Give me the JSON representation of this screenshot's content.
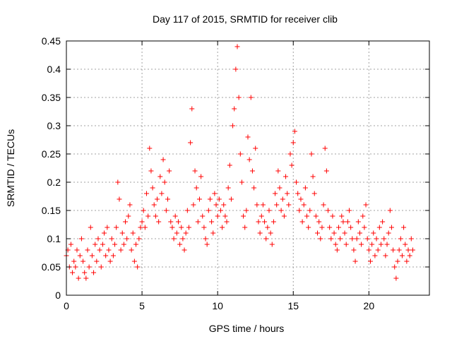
{
  "chart_data": {
    "type": "scatter",
    "title": "Day 117 of 2015, SRMTID for receiver clib",
    "xlabel": "GPS time / hours",
    "ylabel": "SRMTID / TECUs",
    "xlim": [
      0,
      24
    ],
    "ylim": [
      0,
      0.45
    ],
    "xticks": [
      0,
      5,
      10,
      15,
      20
    ],
    "xtick_labels": [
      "0",
      "5",
      "10",
      "15",
      "20"
    ],
    "yticks": [
      0,
      0.05,
      0.1,
      0.15,
      0.2,
      0.25,
      0.3,
      0.35,
      0.4,
      0.45
    ],
    "ytick_labels": [
      "0",
      "0.05",
      "0.1",
      "0.15",
      "0.2",
      "0.25",
      "0.3",
      "0.35",
      "0.4",
      "0.45"
    ],
    "grid": true,
    "marker": "+",
    "marker_color": "#ff0000",
    "series": [
      {
        "points": [
          [
            0.0,
            0.07
          ],
          [
            0.1,
            0.08
          ],
          [
            0.2,
            0.05
          ],
          [
            0.3,
            0.09
          ],
          [
            0.4,
            0.04
          ],
          [
            0.5,
            0.06
          ],
          [
            0.6,
            0.05
          ],
          [
            0.7,
            0.08
          ],
          [
            0.8,
            0.03
          ],
          [
            0.9,
            0.07
          ],
          [
            1.0,
            0.1
          ],
          [
            1.1,
            0.06
          ],
          [
            1.2,
            0.04
          ],
          [
            1.3,
            0.03
          ],
          [
            1.4,
            0.08
          ],
          [
            1.5,
            0.05
          ],
          [
            1.6,
            0.12
          ],
          [
            1.7,
            0.07
          ],
          [
            1.8,
            0.04
          ],
          [
            1.9,
            0.09
          ],
          [
            2.0,
            0.06
          ],
          [
            2.1,
            0.1
          ],
          [
            2.2,
            0.08
          ],
          [
            2.3,
            0.05
          ],
          [
            2.4,
            0.09
          ],
          [
            2.5,
            0.11
          ],
          [
            2.6,
            0.07
          ],
          [
            2.7,
            0.12
          ],
          [
            2.8,
            0.08
          ],
          [
            2.9,
            0.06
          ],
          [
            3.0,
            0.1
          ],
          [
            3.1,
            0.07
          ],
          [
            3.2,
            0.09
          ],
          [
            3.3,
            0.12
          ],
          [
            3.4,
            0.2
          ],
          [
            3.5,
            0.17
          ],
          [
            3.6,
            0.08
          ],
          [
            3.7,
            0.11
          ],
          [
            3.8,
            0.09
          ],
          [
            3.9,
            0.13
          ],
          [
            4.0,
            0.1
          ],
          [
            4.1,
            0.14
          ],
          [
            4.2,
            0.16
          ],
          [
            4.3,
            0.08
          ],
          [
            4.4,
            0.11
          ],
          [
            4.5,
            0.06
          ],
          [
            4.6,
            0.09
          ],
          [
            4.7,
            0.05
          ],
          [
            4.8,
            0.1
          ],
          [
            4.9,
            0.12
          ],
          [
            5.0,
            0.13
          ],
          [
            5.1,
            0.15
          ],
          [
            5.2,
            0.12
          ],
          [
            5.3,
            0.18
          ],
          [
            5.4,
            0.14
          ],
          [
            5.5,
            0.26
          ],
          [
            5.6,
            0.22
          ],
          [
            5.7,
            0.19
          ],
          [
            5.8,
            0.16
          ],
          [
            5.9,
            0.14
          ],
          [
            6.0,
            0.17
          ],
          [
            6.1,
            0.13
          ],
          [
            6.2,
            0.21
          ],
          [
            6.3,
            0.18
          ],
          [
            6.4,
            0.24
          ],
          [
            6.5,
            0.2
          ],
          [
            6.6,
            0.15
          ],
          [
            6.7,
            0.17
          ],
          [
            6.8,
            0.22
          ],
          [
            6.9,
            0.13
          ],
          [
            7.0,
            0.12
          ],
          [
            7.1,
            0.1
          ],
          [
            7.2,
            0.14
          ],
          [
            7.3,
            0.11
          ],
          [
            7.4,
            0.13
          ],
          [
            7.5,
            0.09
          ],
          [
            7.6,
            0.12
          ],
          [
            7.7,
            0.1
          ],
          [
            7.8,
            0.08
          ],
          [
            7.9,
            0.11
          ],
          [
            8.0,
            0.15
          ],
          [
            8.1,
            0.12
          ],
          [
            8.2,
            0.27
          ],
          [
            8.3,
            0.33
          ],
          [
            8.4,
            0.16
          ],
          [
            8.5,
            0.22
          ],
          [
            8.6,
            0.19
          ],
          [
            8.7,
            0.13
          ],
          [
            8.8,
            0.17
          ],
          [
            8.9,
            0.21
          ],
          [
            9.0,
            0.14
          ],
          [
            9.1,
            0.12
          ],
          [
            9.2,
            0.1
          ],
          [
            9.3,
            0.09
          ],
          [
            9.4,
            0.15
          ],
          [
            9.5,
            0.17
          ],
          [
            9.6,
            0.13
          ],
          [
            9.7,
            0.11
          ],
          [
            9.8,
            0.18
          ],
          [
            9.9,
            0.16
          ],
          [
            10.0,
            0.14
          ],
          [
            10.1,
            0.17
          ],
          [
            10.2,
            0.15
          ],
          [
            10.3,
            0.12
          ],
          [
            10.4,
            0.16
          ],
          [
            10.5,
            0.14
          ],
          [
            10.6,
            0.13
          ],
          [
            10.7,
            0.19
          ],
          [
            10.8,
            0.23
          ],
          [
            10.9,
            0.17
          ],
          [
            11.0,
            0.3
          ],
          [
            11.1,
            0.33
          ],
          [
            11.2,
            0.4
          ],
          [
            11.3,
            0.44
          ],
          [
            11.4,
            0.35
          ],
          [
            11.5,
            0.25
          ],
          [
            11.6,
            0.2
          ],
          [
            11.7,
            0.14
          ],
          [
            11.8,
            0.12
          ],
          [
            11.9,
            0.15
          ],
          [
            12.0,
            0.28
          ],
          [
            12.1,
            0.24
          ],
          [
            12.2,
            0.35
          ],
          [
            12.3,
            0.22
          ],
          [
            12.4,
            0.19
          ],
          [
            12.5,
            0.26
          ],
          [
            12.6,
            0.16
          ],
          [
            12.7,
            0.13
          ],
          [
            12.8,
            0.11
          ],
          [
            12.9,
            0.14
          ],
          [
            13.0,
            0.16
          ],
          [
            13.1,
            0.13
          ],
          [
            13.2,
            0.1
          ],
          [
            13.3,
            0.12
          ],
          [
            13.4,
            0.15
          ],
          [
            13.5,
            0.11
          ],
          [
            13.6,
            0.09
          ],
          [
            13.7,
            0.13
          ],
          [
            13.8,
            0.18
          ],
          [
            13.9,
            0.16
          ],
          [
            14.0,
            0.22
          ],
          [
            14.1,
            0.19
          ],
          [
            14.2,
            0.15
          ],
          [
            14.3,
            0.17
          ],
          [
            14.4,
            0.14
          ],
          [
            14.5,
            0.21
          ],
          [
            14.6,
            0.18
          ],
          [
            14.7,
            0.16
          ],
          [
            14.8,
            0.25
          ],
          [
            14.9,
            0.23
          ],
          [
            15.0,
            0.27
          ],
          [
            15.1,
            0.29
          ],
          [
            15.2,
            0.2
          ],
          [
            15.3,
            0.18
          ],
          [
            15.4,
            0.15
          ],
          [
            15.5,
            0.17
          ],
          [
            15.6,
            0.13
          ],
          [
            15.7,
            0.16
          ],
          [
            15.8,
            0.19
          ],
          [
            15.9,
            0.14
          ],
          [
            16.0,
            0.12
          ],
          [
            16.1,
            0.15
          ],
          [
            16.2,
            0.25
          ],
          [
            16.3,
            0.21
          ],
          [
            16.4,
            0.18
          ],
          [
            16.5,
            0.14
          ],
          [
            16.6,
            0.11
          ],
          [
            16.7,
            0.13
          ],
          [
            16.8,
            0.1
          ],
          [
            16.9,
            0.12
          ],
          [
            17.0,
            0.16
          ],
          [
            17.1,
            0.26
          ],
          [
            17.2,
            0.22
          ],
          [
            17.3,
            0.15
          ],
          [
            17.4,
            0.12
          ],
          [
            17.5,
            0.1
          ],
          [
            17.6,
            0.14
          ],
          [
            17.7,
            0.11
          ],
          [
            17.8,
            0.09
          ],
          [
            17.9,
            0.08
          ],
          [
            18.0,
            0.12
          ],
          [
            18.1,
            0.1
          ],
          [
            18.2,
            0.14
          ],
          [
            18.3,
            0.13
          ],
          [
            18.4,
            0.11
          ],
          [
            18.5,
            0.09
          ],
          [
            18.6,
            0.13
          ],
          [
            18.7,
            0.15
          ],
          [
            18.8,
            0.12
          ],
          [
            18.9,
            0.1
          ],
          [
            19.0,
            0.08
          ],
          [
            19.1,
            0.06
          ],
          [
            19.2,
            0.1
          ],
          [
            19.3,
            0.13
          ],
          [
            19.4,
            0.11
          ],
          [
            19.5,
            0.09
          ],
          [
            19.6,
            0.14
          ],
          [
            19.7,
            0.12
          ],
          [
            19.8,
            0.16
          ],
          [
            19.9,
            0.1
          ],
          [
            20.0,
            0.08
          ],
          [
            20.1,
            0.06
          ],
          [
            20.2,
            0.09
          ],
          [
            20.3,
            0.11
          ],
          [
            20.4,
            0.07
          ],
          [
            20.5,
            0.1
          ],
          [
            20.6,
            0.08
          ],
          [
            20.7,
            0.12
          ],
          [
            20.8,
            0.09
          ],
          [
            20.9,
            0.13
          ],
          [
            21.0,
            0.1
          ],
          [
            21.1,
            0.07
          ],
          [
            21.2,
            0.09
          ],
          [
            21.3,
            0.11
          ],
          [
            21.4,
            0.15
          ],
          [
            21.5,
            0.12
          ],
          [
            21.6,
            0.08
          ],
          [
            21.7,
            0.05
          ],
          [
            21.8,
            0.03
          ],
          [
            21.9,
            0.06
          ],
          [
            22.0,
            0.08
          ],
          [
            22.1,
            0.1
          ],
          [
            22.2,
            0.07
          ],
          [
            22.3,
            0.12
          ],
          [
            22.4,
            0.09
          ],
          [
            22.5,
            0.06
          ],
          [
            22.6,
            0.08
          ],
          [
            22.7,
            0.07
          ],
          [
            22.8,
            0.1
          ],
          [
            22.9,
            0.08
          ]
        ]
      }
    ]
  }
}
